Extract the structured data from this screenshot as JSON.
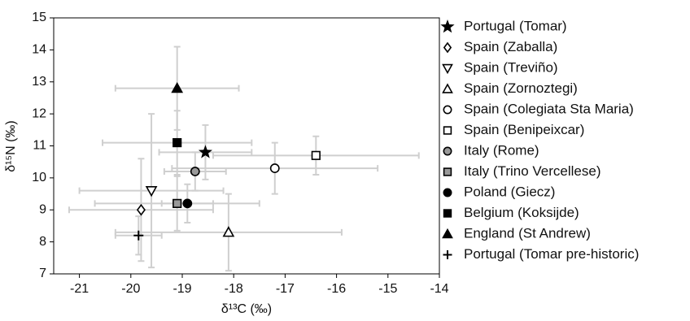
{
  "chart_data": {
    "type": "scatter",
    "x_label": "δ¹³C (‰)",
    "y_label": "δ¹⁵N (‰)",
    "xlim": [
      -21.5,
      -14
    ],
    "xticks": [
      -21,
      -20,
      -19,
      -18,
      -17,
      -16,
      -15,
      -14
    ],
    "ylim": [
      7,
      15
    ],
    "yticks": [
      7,
      8,
      9,
      10,
      11,
      12,
      13,
      14,
      15
    ],
    "error_bar_color": "#cfcfcf",
    "series": [
      {
        "name": "Portugal (Tomar)",
        "marker": "star",
        "color": "#000000",
        "x": [
          -18.55
        ],
        "y": [
          10.8
        ],
        "xerr": [
          0.9
        ],
        "yerr": [
          0.85
        ]
      },
      {
        "name": "Spain (Zaballa)",
        "marker": "diamond",
        "color": "#ffffff",
        "x": [
          -19.8
        ],
        "y": [
          9.0
        ],
        "xerr": [
          1.4
        ],
        "yerr": [
          1.6
        ]
      },
      {
        "name": "Spain (Treviño)",
        "marker": "triangle-down",
        "color": "#ffffff",
        "x": [
          -19.6
        ],
        "y": [
          9.6
        ],
        "xerr": [
          1.4
        ],
        "yerr": [
          2.4
        ]
      },
      {
        "name": "Spain (Zornoztegi)",
        "marker": "triangle-up",
        "color": "#ffffff",
        "x": [
          -18.1
        ],
        "y": [
          8.3
        ],
        "xerr": [
          2.2
        ],
        "yerr": [
          1.2
        ]
      },
      {
        "name": "Spain (Colegiata Sta Maria)",
        "marker": "circle",
        "color": "#ffffff",
        "x": [
          -17.2
        ],
        "y": [
          10.3
        ],
        "xerr": [
          2.0
        ],
        "yerr": [
          0.8
        ]
      },
      {
        "name": "Spain (Benipeixcar)",
        "marker": "square",
        "color": "#ffffff",
        "x": [
          -16.4
        ],
        "y": [
          10.7
        ],
        "xerr": [
          2.0
        ],
        "yerr": [
          0.6
        ]
      },
      {
        "name": "Italy (Rome)",
        "marker": "circle",
        "color": "#999999",
        "x": [
          -18.75
        ],
        "y": [
          10.2
        ],
        "xerr": [
          0.6
        ],
        "yerr": [
          0.6
        ]
      },
      {
        "name": "Italy (Trino Vercellese)",
        "marker": "square",
        "color": "#999999",
        "x": [
          -19.1
        ],
        "y": [
          9.2
        ],
        "xerr": [
          1.6
        ],
        "yerr": [
          0.85
        ]
      },
      {
        "name": "Poland (Giecz)",
        "marker": "circle",
        "color": "#000000",
        "x": [
          -18.9
        ],
        "y": [
          9.2
        ],
        "xerr": [
          0.5
        ],
        "yerr": [
          0.6
        ]
      },
      {
        "name": "Belgium (Koksijde)",
        "marker": "square",
        "color": "#000000",
        "x": [
          -19.1
        ],
        "y": [
          11.1
        ],
        "xerr": [
          1.45
        ],
        "yerr": [
          1.0
        ]
      },
      {
        "name": "England (St Andrew)",
        "marker": "triangle-up",
        "color": "#000000",
        "x": [
          -19.1
        ],
        "y": [
          12.8
        ],
        "xerr": [
          1.2
        ],
        "yerr": [
          1.3
        ]
      },
      {
        "name": "Portugal (Tomar pre-historic)",
        "marker": "plus",
        "color": "#000000",
        "x": [
          -19.85
        ],
        "y": [
          8.2
        ],
        "xerr": [
          0.45
        ],
        "yerr": [
          0.6
        ]
      }
    ]
  }
}
